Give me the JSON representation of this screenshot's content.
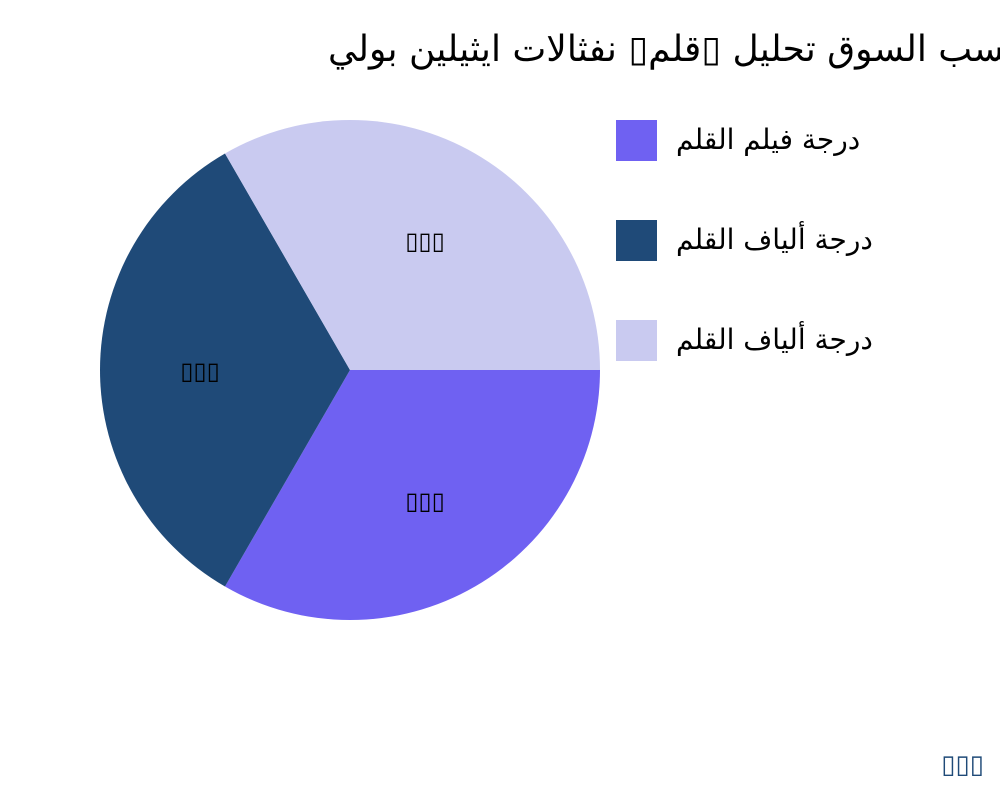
{
  "chart_data": {
    "type": "pie",
    "title": "حسب السوق تحليل ▯قلم▯ نفثالات ايثيلين بولي",
    "slices": [
      {
        "name": "درجة فيلم القلم",
        "value": 33.33,
        "label": "▯▯▯",
        "color": "#6f61f2"
      },
      {
        "name": "درجة ألياف القلم",
        "value": 33.33,
        "label": "▯▯▯",
        "color": "#1f4a78"
      },
      {
        "name": "درجة ألياف القلم",
        "value": 33.33,
        "label": "▯▯▯",
        "color": "#c9caf0"
      }
    ],
    "legend_position": "right"
  },
  "footer": "▯▯▯"
}
